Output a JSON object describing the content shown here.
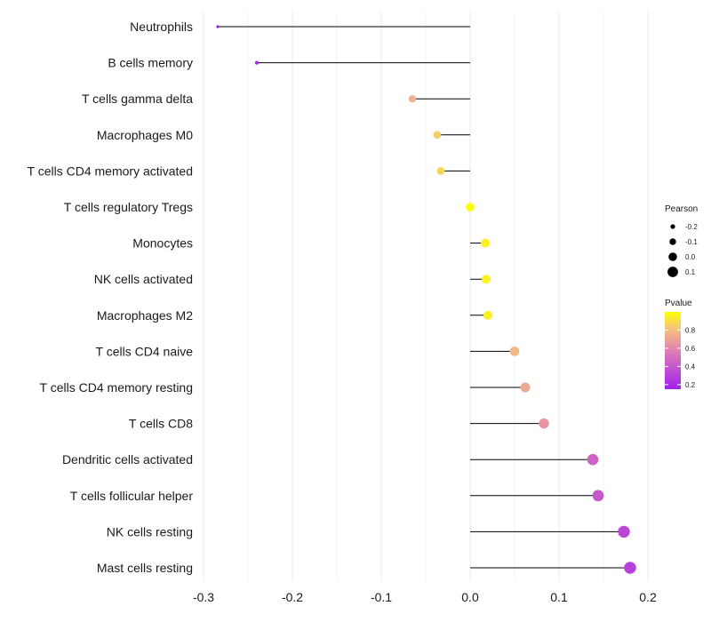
{
  "chart_data": {
    "type": "lollipop",
    "title": "",
    "xlabel": "",
    "ylabel": "",
    "xlim": [
      -0.3,
      0.2
    ],
    "x_ticks": [
      -0.3,
      -0.2,
      -0.1,
      0.0,
      0.1,
      0.2
    ],
    "x_tick_labels": [
      "-0.3",
      "-0.2",
      "-0.1",
      "0.0",
      "0.1",
      "0.2"
    ],
    "grid": true,
    "legend_position": "right",
    "categories": [
      "Neutrophils",
      "B cells memory",
      "T cells gamma delta",
      "Macrophages M0",
      "T cells CD4 memory activated",
      "T cells regulatory  Tregs ",
      "Monocytes",
      "NK cells activated",
      "Macrophages M2",
      "T cells CD4 naive",
      "T cells CD4 memory resting",
      "T cells CD8",
      "Dendritic cells activated",
      "T cells follicular helper",
      "NK cells resting",
      "Mast cells resting"
    ],
    "pearson": [
      -0.284,
      -0.24,
      -0.065,
      -0.037,
      -0.033,
      0.0,
      0.017,
      0.018,
      0.02,
      0.05,
      0.062,
      0.083,
      0.138,
      0.144,
      0.173,
      0.18
    ],
    "pvalue": [
      0.15,
      0.2,
      0.75,
      0.85,
      0.87,
      1.0,
      0.95,
      0.95,
      0.95,
      0.78,
      0.72,
      0.65,
      0.45,
      0.4,
      0.32,
      0.3
    ],
    "size_legend": {
      "title": "Pearson",
      "entries": [
        {
          "value": -0.2,
          "label": "-0.2"
        },
        {
          "value": -0.1,
          "label": "-0.1"
        },
        {
          "value": 0.0,
          "label": "0.0"
        },
        {
          "value": 0.1,
          "label": "0.1"
        }
      ]
    },
    "color_legend": {
      "title": "Pvalue",
      "range": [
        0.15,
        1.0
      ],
      "tick_values": [
        0.8,
        0.6,
        0.4,
        0.2
      ],
      "tick_labels": [
        "0.8",
        "0.6",
        "0.4",
        "0.2"
      ],
      "low_color": "#a020f0",
      "high_color": "#ffff00"
    }
  },
  "colors": {
    "background": "#ffffff",
    "grid": "#ebebeb",
    "stem": "#000000",
    "text": "#1a1a1a"
  }
}
